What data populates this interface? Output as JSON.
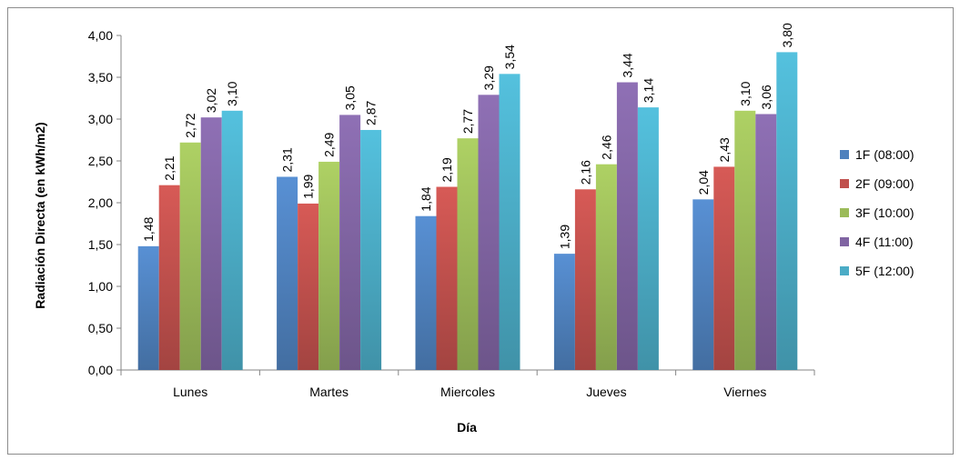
{
  "chart_data": {
    "type": "bar",
    "title": "",
    "xlabel": "Día",
    "ylabel": "Radiación Directa (en kWh/m2)",
    "ylim": [
      0,
      4
    ],
    "ytick_step": 0.5,
    "yticks": [
      "0,00",
      "0,50",
      "1,00",
      "1,50",
      "2,00",
      "2,50",
      "3,00",
      "3,50",
      "4,00"
    ],
    "grid": false,
    "legend_position": "right",
    "categories": [
      "Lunes",
      "Martes",
      "Miercoles",
      "Jueves",
      "Viernes"
    ],
    "series": [
      {
        "name": "1F (08:00)",
        "color": "#4F81BD",
        "values": [
          1.48,
          2.31,
          1.84,
          1.39,
          2.04
        ],
        "labels": [
          "1,48",
          "2,31",
          "1,84",
          "1,39",
          "2,04"
        ]
      },
      {
        "name": "2F (09:00)",
        "color": "#C0504D",
        "values": [
          2.21,
          1.99,
          2.19,
          2.16,
          2.43
        ],
        "labels": [
          "2,21",
          "1,99",
          "2,19",
          "2,16",
          "2,43"
        ]
      },
      {
        "name": "3F (10:00)",
        "color": "#9BBB59",
        "values": [
          2.72,
          2.49,
          2.77,
          2.46,
          3.1
        ],
        "labels": [
          "2,72",
          "2,49",
          "2,77",
          "2,46",
          "3,10"
        ]
      },
      {
        "name": "4F (11:00)",
        "color": "#8064A2",
        "values": [
          3.02,
          3.05,
          3.29,
          3.44,
          3.06
        ],
        "labels": [
          "3,02",
          "3,05",
          "3,29",
          "3,44",
          "3,06"
        ]
      },
      {
        "name": "5F (12:00)",
        "color": "#4BACC6",
        "values": [
          3.1,
          2.87,
          3.54,
          3.14,
          3.8
        ],
        "labels": [
          "3,10",
          "2,87",
          "3,54",
          "3,14",
          "3,80"
        ]
      }
    ]
  }
}
